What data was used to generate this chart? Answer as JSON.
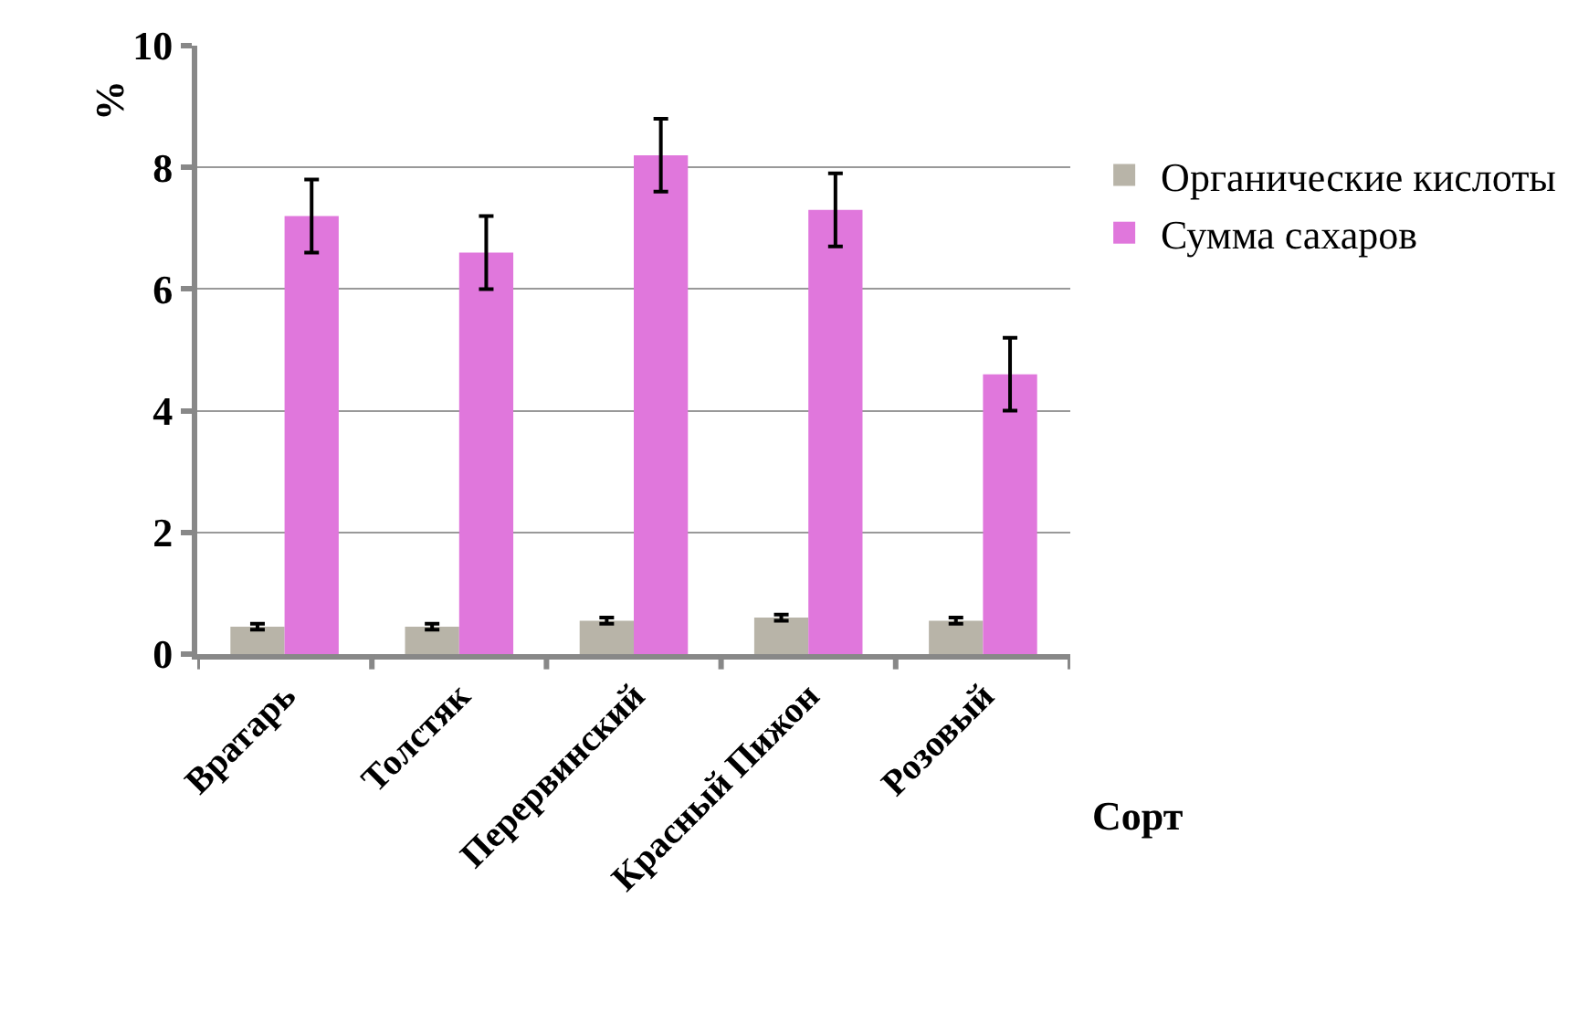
{
  "chart_data": {
    "type": "bar",
    "xlabel": "Сорт",
    "ylabel": "%",
    "categories": [
      "Вратарь",
      "Толстяк",
      "Перервинский",
      "Красный Пижон",
      "Розовый"
    ],
    "series": [
      {
        "name": "Органические кислоты",
        "color": "#b8b4a8",
        "values": [
          0.45,
          0.45,
          0.55,
          0.6,
          0.55
        ],
        "errors": [
          0.05,
          0.05,
          0.05,
          0.05,
          0.05
        ]
      },
      {
        "name": "Сумма сахаров",
        "color": "#e077dc",
        "values": [
          7.2,
          6.6,
          8.2,
          7.3,
          4.6
        ],
        "errors": [
          0.6,
          0.6,
          0.6,
          0.6,
          0.6
        ]
      }
    ],
    "ylim": [
      0,
      10
    ],
    "yticks": [
      0,
      2,
      4,
      6,
      8,
      10
    ],
    "grid": "y",
    "legend": "right"
  }
}
